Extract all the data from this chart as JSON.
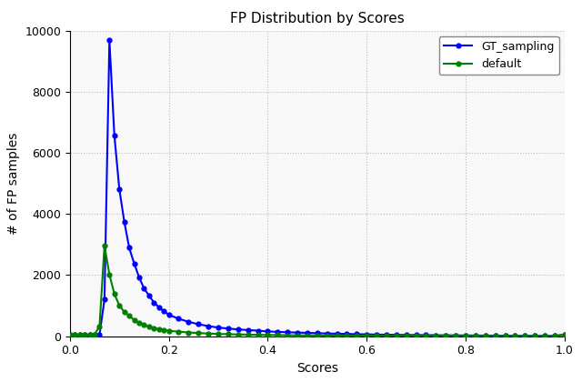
{
  "title": "FP Distribution by Scores",
  "xlabel": "Scores",
  "ylabel": "# of FP samples",
  "xlim": [
    0.0,
    1.0
  ],
  "ylim": [
    0,
    10000
  ],
  "gt_sampling_x": [
    0.0,
    0.01,
    0.02,
    0.03,
    0.04,
    0.05,
    0.06,
    0.07,
    0.08,
    0.09,
    0.1,
    0.11,
    0.12,
    0.13,
    0.14,
    0.15,
    0.16,
    0.17,
    0.18,
    0.19,
    0.2,
    0.22,
    0.24,
    0.26,
    0.28,
    0.3,
    0.32,
    0.34,
    0.36,
    0.38,
    0.4,
    0.42,
    0.44,
    0.46,
    0.48,
    0.5,
    0.52,
    0.54,
    0.56,
    0.58,
    0.6,
    0.62,
    0.64,
    0.66,
    0.68,
    0.7,
    0.72,
    0.74,
    0.76,
    0.78,
    0.8,
    0.82,
    0.84,
    0.86,
    0.88,
    0.9,
    0.92,
    0.94,
    0.96,
    0.98,
    1.0
  ],
  "gt_sampling_y": [
    50,
    50,
    50,
    50,
    50,
    50,
    50,
    1200,
    9680,
    6570,
    4820,
    3750,
    2890,
    2380,
    1930,
    1560,
    1330,
    1100,
    950,
    820,
    700,
    570,
    470,
    390,
    330,
    280,
    250,
    220,
    200,
    180,
    155,
    140,
    128,
    118,
    108,
    98,
    88,
    80,
    72,
    65,
    58,
    53,
    48,
    44,
    40,
    37,
    34,
    31,
    28,
    26,
    24,
    22,
    20,
    18,
    16,
    14,
    12,
    11,
    9,
    8,
    50
  ],
  "default_x": [
    0.0,
    0.01,
    0.02,
    0.03,
    0.04,
    0.05,
    0.06,
    0.07,
    0.08,
    0.09,
    0.1,
    0.11,
    0.12,
    0.13,
    0.14,
    0.15,
    0.16,
    0.17,
    0.18,
    0.19,
    0.2,
    0.22,
    0.24,
    0.26,
    0.28,
    0.3,
    0.32,
    0.34,
    0.36,
    0.38,
    0.4,
    0.42,
    0.44,
    0.46,
    0.48,
    0.5,
    0.52,
    0.54,
    0.56,
    0.58,
    0.6,
    0.62,
    0.64,
    0.66,
    0.68,
    0.7,
    0.72,
    0.74,
    0.76,
    0.78,
    0.8,
    0.82,
    0.84,
    0.86,
    0.88,
    0.9,
    0.92,
    0.94,
    0.96,
    0.98,
    1.0
  ],
  "default_y": [
    50,
    50,
    50,
    50,
    50,
    50,
    330,
    2960,
    2020,
    1380,
    1010,
    790,
    670,
    530,
    430,
    365,
    310,
    265,
    230,
    200,
    175,
    148,
    122,
    102,
    86,
    73,
    64,
    56,
    50,
    44,
    39,
    35,
    31,
    28,
    25,
    23,
    21,
    19,
    17,
    15,
    14,
    13,
    12,
    11,
    10,
    9,
    8,
    8,
    7,
    7,
    6,
    6,
    5,
    5,
    5,
    4,
    4,
    4,
    3,
    3,
    50
  ],
  "gt_color": "#0000ff",
  "default_color": "#008000",
  "gt_label": "GT_sampling",
  "default_label": "default",
  "grid_color": "#bbbbbb",
  "grid_linestyle": ":",
  "marker": "o",
  "markersize": 3.5,
  "linewidth": 1.5,
  "yticks": [
    0,
    2000,
    4000,
    6000,
    8000,
    10000
  ],
  "xticks": [
    0.0,
    0.2,
    0.4,
    0.6,
    0.8,
    1.0
  ],
  "bg_color": "#f8f8f8",
  "fig_bg_color": "#ffffff"
}
